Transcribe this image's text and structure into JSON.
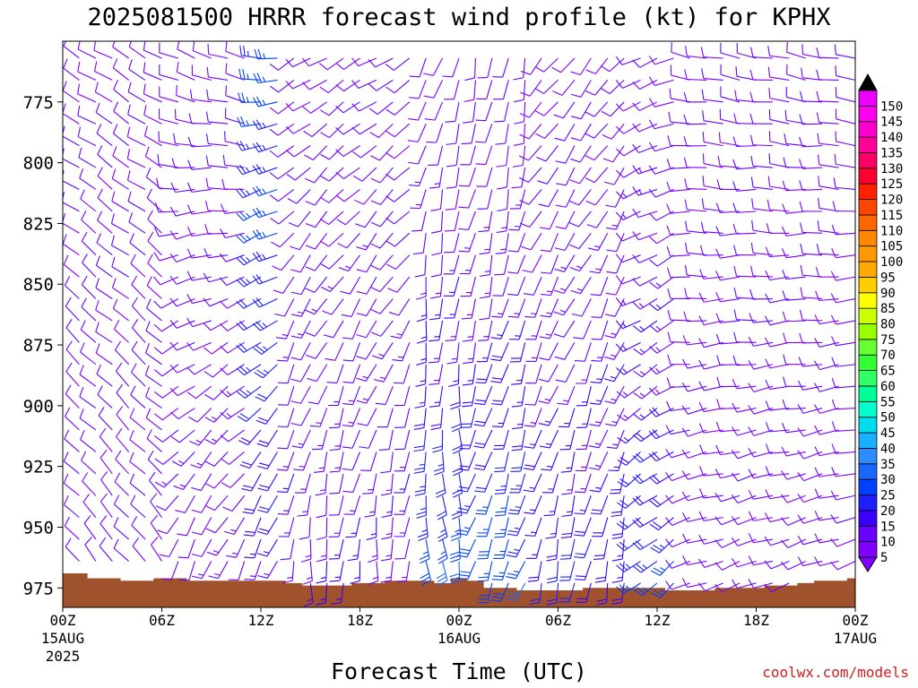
{
  "chart_data": {
    "type": "wind-barb-time-height",
    "title": "2025081500 HRRR forecast wind profile (kt) for KPHX",
    "xlabel": "Forecast Time (UTC)",
    "ylabel": "",
    "y_axis": {
      "label_values": [
        775,
        800,
        825,
        850,
        875,
        900,
        925,
        950,
        975
      ],
      "range_hpa": [
        750,
        983
      ]
    },
    "x_axis": {
      "range_hours": [
        0,
        48
      ],
      "ticks": [
        {
          "hour": 0,
          "label": "00Z",
          "sub1": "15AUG",
          "sub2": "2025"
        },
        {
          "hour": 6,
          "label": "06Z",
          "sub1": "",
          "sub2": ""
        },
        {
          "hour": 12,
          "label": "12Z",
          "sub1": "",
          "sub2": ""
        },
        {
          "hour": 18,
          "label": "18Z",
          "sub1": "",
          "sub2": ""
        },
        {
          "hour": 24,
          "label": "00Z",
          "sub1": "16AUG",
          "sub2": ""
        },
        {
          "hour": 30,
          "label": "06Z",
          "sub1": "",
          "sub2": ""
        },
        {
          "hour": 36,
          "label": "12Z",
          "sub1": "",
          "sub2": ""
        },
        {
          "hour": 42,
          "label": "18Z",
          "sub1": "",
          "sub2": ""
        },
        {
          "hour": 48,
          "label": "00Z",
          "sub1": "17AUG",
          "sub2": ""
        }
      ]
    },
    "forecast_hours": [
      0,
      1,
      2,
      3,
      4,
      5,
      6,
      7,
      8,
      9,
      10,
      11,
      12,
      13,
      14,
      15,
      16,
      17,
      18,
      19,
      20,
      21,
      22,
      23,
      24,
      25,
      26,
      27,
      28,
      29,
      30,
      31,
      32,
      33,
      34,
      35,
      36,
      37,
      38,
      39,
      40,
      41,
      42,
      43,
      44,
      45,
      46,
      47,
      48
    ],
    "pressure_levels_hpa": [
      757,
      766,
      775,
      784,
      793,
      802,
      811,
      820,
      829,
      838,
      847,
      856,
      865,
      874,
      883,
      892,
      901,
      910,
      919,
      928,
      937,
      946,
      955,
      964,
      973
    ],
    "surface_pressure_hpa": [
      969,
      969,
      971,
      971,
      972,
      972,
      971,
      971,
      972,
      972,
      972,
      972,
      972,
      972,
      973,
      974,
      974,
      974,
      973,
      973,
      972,
      972,
      972,
      973,
      971,
      972,
      975,
      975,
      976,
      976,
      976,
      976,
      975,
      975,
      975,
      975,
      975,
      976,
      976,
      976,
      975,
      975,
      975,
      974,
      974,
      973,
      972,
      972,
      971
    ],
    "ground_color": "#a0522d",
    "wind": {
      "segments": [
        {
          "h0": 0,
          "h1": 6,
          "dir_top": 300,
          "dir_bot": 320,
          "spd_top": 10,
          "spd_bot": 10
        },
        {
          "h0": 6,
          "h1": 11,
          "dir_top": 290,
          "dir_bot": 200,
          "spd_top": 10,
          "spd_bot": 12
        },
        {
          "h0": 11,
          "h1": 13,
          "dir_top": 270,
          "dir_bot": 200,
          "spd_top": 25,
          "spd_bot": 15
        },
        {
          "h0": 13,
          "h1": 21,
          "dir_top": 240,
          "dir_bot": 180,
          "spd_top": 10,
          "spd_bot": 15
        },
        {
          "h0": 21,
          "h1": 24,
          "dir_top": 200,
          "dir_bot": 170,
          "spd_top": 10,
          "spd_bot": 30
        },
        {
          "h0": 24,
          "h1": 28,
          "dir_top": 190,
          "dir_bot": 200,
          "spd_top": 10,
          "spd_bot": 30
        },
        {
          "h0": 28,
          "h1": 34,
          "dir_top": 220,
          "dir_bot": 190,
          "spd_top": 10,
          "spd_bot": 20
        },
        {
          "h0": 34,
          "h1": 37,
          "dir_top": 250,
          "dir_bot": 230,
          "spd_top": 10,
          "spd_bot": 25
        },
        {
          "h0": 37,
          "h1": 48,
          "dir_top": 280,
          "dir_bot": 250,
          "spd_top": 10,
          "spd_bot": 10
        }
      ]
    },
    "colorbar": {
      "values": [
        5,
        10,
        15,
        20,
        25,
        30,
        35,
        40,
        45,
        50,
        55,
        60,
        65,
        70,
        75,
        80,
        85,
        90,
        95,
        100,
        105,
        110,
        115,
        120,
        125,
        130,
        135,
        140,
        145,
        150
      ],
      "colors": [
        "#7f00ff",
        "#6a00ff",
        "#3a00ff",
        "#1e1eff",
        "#0040ff",
        "#1a66ff",
        "#2e8bff",
        "#1ab0ff",
        "#00ddee",
        "#00ffcc",
        "#00ff99",
        "#33ff66",
        "#33ff33",
        "#66ff33",
        "#99ff00",
        "#ccff00",
        "#ffff00",
        "#ffcc00",
        "#ffaa00",
        "#ff9900",
        "#ff8800",
        "#ff6600",
        "#ff4400",
        "#ff2200",
        "#ff0033",
        "#ff0066",
        "#ff0099",
        "#ff00cc",
        "#ff00ee",
        "#ee00ff"
      ]
    }
  },
  "credit": "coolwx.com/models"
}
